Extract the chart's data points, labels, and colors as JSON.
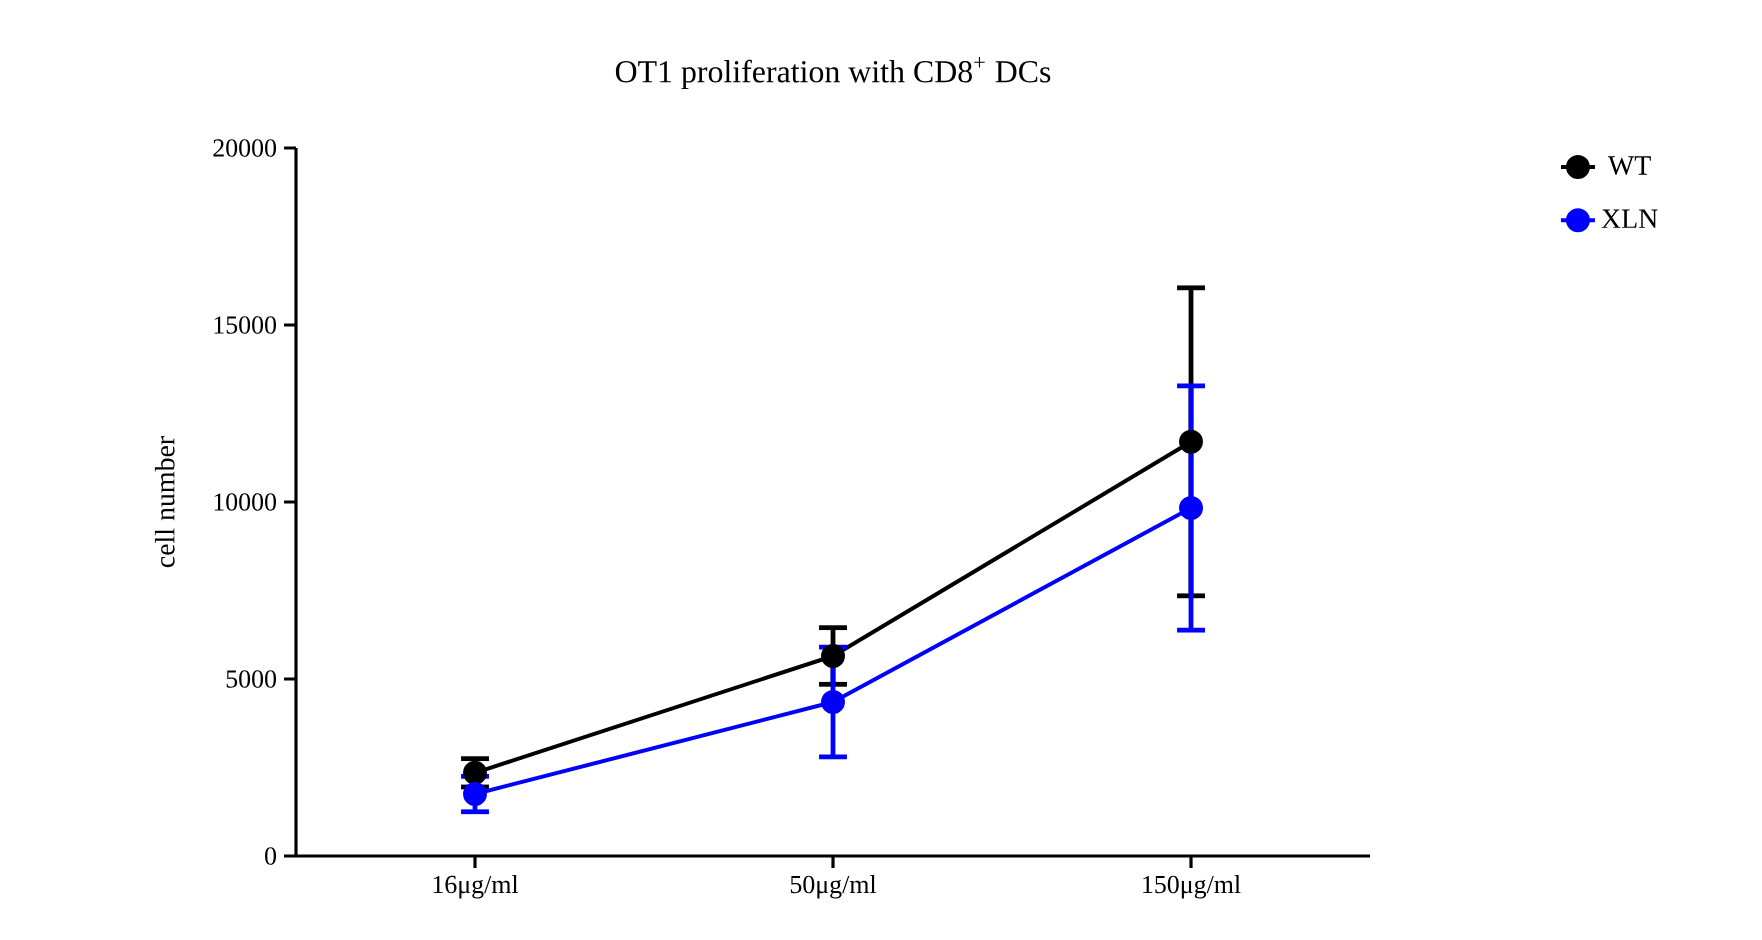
{
  "chart_data": {
    "type": "line",
    "title": "OT1 proliferation with CD8$^{+}$ DCs",
    "ylabel": "cell number",
    "categories": [
      "16μg/ml",
      "50μg/ml",
      "150μg/ml"
    ],
    "series": [
      {
        "name": "WT",
        "color": "#000000",
        "values": [
          2350,
          5650,
          11700
        ],
        "errors": [
          400,
          800,
          4350
        ]
      },
      {
        "name": "XLN",
        "color": "#0000ff",
        "values": [
          1750,
          4350,
          9830
        ],
        "errors": [
          500,
          1550,
          3450
        ]
      }
    ],
    "ylim": [
      0,
      20000
    ],
    "yticks": [
      0,
      5000,
      10000,
      15000,
      20000
    ],
    "legend": "top right",
    "marker": "circle",
    "line_style": "solid"
  }
}
